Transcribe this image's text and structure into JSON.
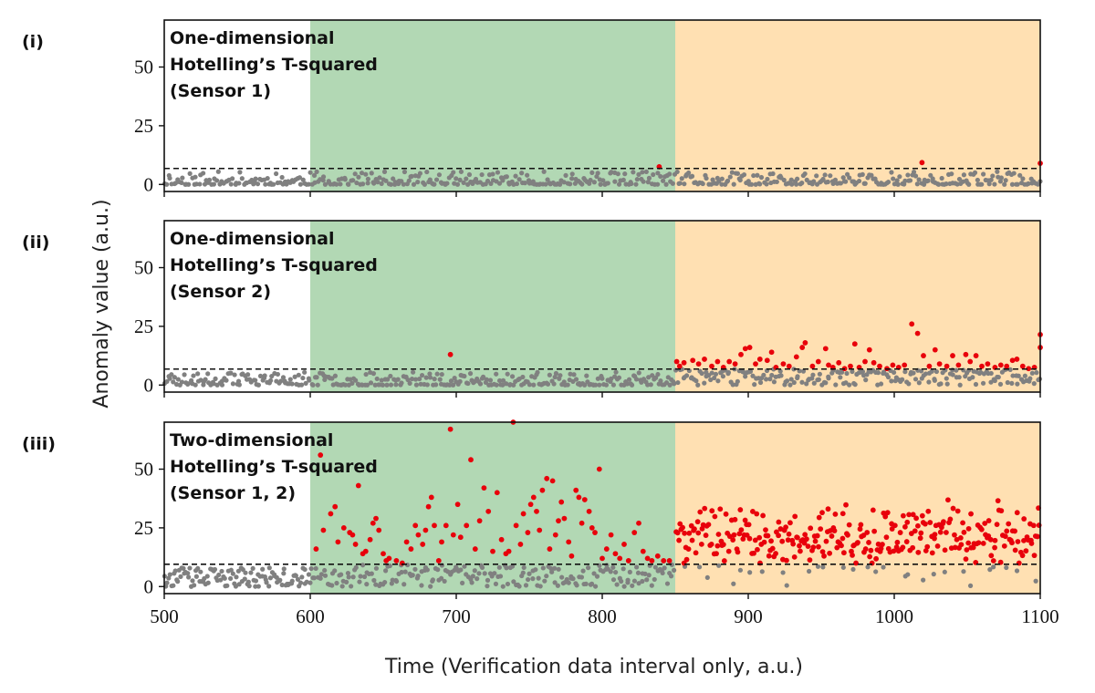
{
  "chart_data": {
    "type": "scatter",
    "xlabel": "Time (Verification data interval only, a.u.)",
    "ylabel": "Anomaly value (a.u.)",
    "xlim": [
      500,
      1100
    ],
    "ylim": [
      -3,
      70
    ],
    "xticks": [
      "500",
      "600",
      "700",
      "800",
      "900",
      "1000",
      "1100"
    ],
    "yticks": [
      "0",
      "25",
      "50"
    ],
    "regions": [
      {
        "from": 600,
        "to": 850,
        "color": "#b2d8b4"
      },
      {
        "from": 850,
        "to": 1100,
        "color": "#ffe0b2"
      }
    ],
    "normal_color": "#808080",
    "anomaly_color": "#e8000b",
    "panels": [
      {
        "label": "(i)",
        "title_lines": [
          "One-dimensional",
          "Hotelling’s T-squared",
          "(Sensor 1)"
        ],
        "threshold": 6.8,
        "anomalies": [
          [
            839,
            7.5
          ],
          [
            1019,
            9.3
          ],
          [
            1100,
            9.0
          ]
        ],
        "seed": 11,
        "normal_gen": [
          {
            "from": 500,
            "to": 1100,
            "n": 490,
            "max": 5.5,
            "pow": 2.2
          }
        ]
      },
      {
        "label": "(ii)",
        "title_lines": [
          "One-dimensional",
          "Hotelling’s T-squared",
          "(Sensor 2)"
        ],
        "threshold": 6.8,
        "anomalies": [
          [
            696,
            13
          ],
          [
            851,
            10
          ],
          [
            853,
            8
          ],
          [
            856,
            9.5
          ],
          [
            862,
            10.5
          ],
          [
            866,
            9
          ],
          [
            870,
            11
          ],
          [
            875,
            8
          ],
          [
            879,
            10
          ],
          [
            883,
            7.5
          ],
          [
            887,
            10
          ],
          [
            891,
            9
          ],
          [
            895,
            13
          ],
          [
            898,
            15.5
          ],
          [
            901,
            16
          ],
          [
            905,
            9
          ],
          [
            908,
            11
          ],
          [
            913,
            10.5
          ],
          [
            916,
            14
          ],
          [
            919,
            7.5
          ],
          [
            924,
            9
          ],
          [
            928,
            8
          ],
          [
            933,
            12
          ],
          [
            937,
            16
          ],
          [
            939,
            18
          ],
          [
            944,
            8
          ],
          [
            948,
            10
          ],
          [
            953,
            15.5
          ],
          [
            955,
            8.5
          ],
          [
            958,
            7.5
          ],
          [
            962,
            9.5
          ],
          [
            966,
            7
          ],
          [
            970,
            8
          ],
          [
            973,
            17.5
          ],
          [
            976,
            7.5
          ],
          [
            980,
            10
          ],
          [
            983,
            15
          ],
          [
            986,
            9.5
          ],
          [
            990,
            8
          ],
          [
            995,
            7
          ],
          [
            999,
            8.5
          ],
          [
            1003,
            7.5
          ],
          [
            1007,
            8.5
          ],
          [
            1012,
            26
          ],
          [
            1016,
            22
          ],
          [
            1020,
            12.5
          ],
          [
            1024,
            8
          ],
          [
            1028,
            15
          ],
          [
            1031,
            9
          ],
          [
            1036,
            8
          ],
          [
            1040,
            12.5
          ],
          [
            1044,
            8.5
          ],
          [
            1049,
            13
          ],
          [
            1052,
            10
          ],
          [
            1056,
            12.5
          ],
          [
            1060,
            8
          ],
          [
            1064,
            9
          ],
          [
            1069,
            7.5
          ],
          [
            1073,
            8.5
          ],
          [
            1077,
            8
          ],
          [
            1081,
            10.5
          ],
          [
            1084,
            11
          ],
          [
            1088,
            8
          ],
          [
            1092,
            7
          ],
          [
            1096,
            7.5
          ],
          [
            1100,
            16
          ],
          [
            1100,
            21.5
          ]
        ],
        "seed": 23,
        "normal_gen": [
          {
            "from": 500,
            "to": 850,
            "n": 300,
            "max": 5.5,
            "pow": 2.0
          },
          {
            "from": 850,
            "to": 1100,
            "n": 200,
            "max": 6.8,
            "pow": 0.9
          }
        ]
      },
      {
        "label": "(iii)",
        "title_lines": [
          "Two-dimensional",
          "Hotelling’s T-squared",
          "(Sensor 1, 2)"
        ],
        "threshold": 9.5,
        "anomalies": [
          [
            604,
            16
          ],
          [
            607,
            56
          ],
          [
            609,
            24
          ],
          [
            614,
            31
          ],
          [
            617,
            34
          ],
          [
            619,
            19
          ],
          [
            623,
            25
          ],
          [
            627,
            23
          ],
          [
            629,
            22
          ],
          [
            631,
            18
          ],
          [
            633,
            43
          ],
          [
            636,
            14
          ],
          [
            638,
            15
          ],
          [
            641,
            20
          ],
          [
            643,
            27
          ],
          [
            645,
            29
          ],
          [
            647,
            24
          ],
          [
            650,
            14
          ],
          [
            652,
            11
          ],
          [
            654,
            12
          ],
          [
            659,
            11
          ],
          [
            663,
            10
          ],
          [
            666,
            19
          ],
          [
            669,
            16
          ],
          [
            672,
            26
          ],
          [
            674,
            22
          ],
          [
            677,
            18
          ],
          [
            679,
            24
          ],
          [
            681,
            34
          ],
          [
            683,
            38
          ],
          [
            685,
            26
          ],
          [
            688,
            11
          ],
          [
            690,
            19
          ],
          [
            693,
            26
          ],
          [
            696,
            67
          ],
          [
            698,
            22
          ],
          [
            701,
            35
          ],
          [
            703,
            21
          ],
          [
            707,
            26
          ],
          [
            710,
            54
          ],
          [
            713,
            16
          ],
          [
            716,
            28
          ],
          [
            719,
            42
          ],
          [
            722,
            32
          ],
          [
            725,
            15
          ],
          [
            728,
            40
          ],
          [
            731,
            20
          ],
          [
            734,
            14
          ],
          [
            736,
            15
          ],
          [
            739,
            70
          ],
          [
            741,
            26
          ],
          [
            744,
            18
          ],
          [
            746,
            31
          ],
          [
            749,
            23
          ],
          [
            751,
            35
          ],
          [
            753,
            38
          ],
          [
            755,
            32
          ],
          [
            757,
            24
          ],
          [
            759,
            41
          ],
          [
            762,
            46
          ],
          [
            764,
            16
          ],
          [
            766,
            45
          ],
          [
            768,
            22
          ],
          [
            770,
            28
          ],
          [
            772,
            36
          ],
          [
            774,
            29
          ],
          [
            777,
            19
          ],
          [
            779,
            13
          ],
          [
            782,
            41
          ],
          [
            784,
            38
          ],
          [
            786,
            27
          ],
          [
            788,
            37
          ],
          [
            791,
            32
          ],
          [
            793,
            25
          ],
          [
            795,
            23
          ],
          [
            798,
            50
          ],
          [
            800,
            12
          ],
          [
            803,
            16
          ],
          [
            806,
            22
          ],
          [
            809,
            14
          ],
          [
            812,
            12
          ],
          [
            815,
            18
          ],
          [
            818,
            11
          ],
          [
            822,
            23
          ],
          [
            825,
            27
          ],
          [
            828,
            15
          ],
          [
            831,
            12
          ],
          [
            834,
            11
          ],
          [
            838,
            13
          ],
          [
            842,
            11
          ],
          [
            846,
            11
          ]
        ],
        "seed": 37,
        "normal_gen": [
          {
            "from": 500,
            "to": 600,
            "n": 110,
            "max": 8.0,
            "pow": 1.3
          },
          {
            "from": 600,
            "to": 850,
            "n": 200,
            "max": 9.3,
            "pow": 1.1
          },
          {
            "from": 850,
            "to": 1100,
            "n": 30,
            "max": 9.3,
            "pow": 0.9
          }
        ],
        "dense_gen": {
          "from": 850,
          "to": 1100,
          "n": 290,
          "min": 10,
          "center": 21,
          "spread": 8,
          "max": 47
        }
      }
    ]
  }
}
